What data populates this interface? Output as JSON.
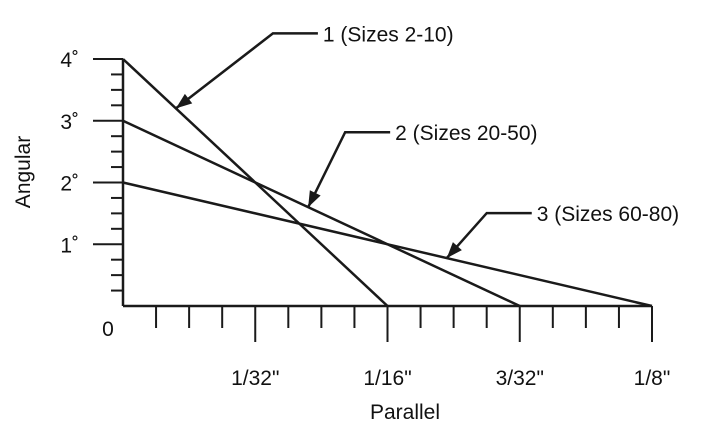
{
  "chart_data": {
    "type": "line",
    "title": "",
    "xlabel": "Parallel",
    "ylabel": "Angular",
    "xlim": [
      0,
      0.125
    ],
    "ylim": [
      0,
      4
    ],
    "origin_label": "0",
    "x_ticks": [
      {
        "value": 0.03125,
        "label": "1/32\""
      },
      {
        "value": 0.0625,
        "label": "1/16\""
      },
      {
        "value": 0.09375,
        "label": "3/32\""
      },
      {
        "value": 0.125,
        "label": "1/8\""
      }
    ],
    "y_ticks": [
      {
        "value": 1,
        "label": "1˚"
      },
      {
        "value": 2,
        "label": "2˚"
      },
      {
        "value": 3,
        "label": "3˚"
      },
      {
        "value": 4,
        "label": "4˚"
      }
    ],
    "x_minor_step": 0.0078125,
    "y_minor_step": 0.25,
    "grid": false,
    "legend": "none",
    "line_color": "#1a1a1a",
    "series": [
      {
        "name": "1 (Sizes 2-10)",
        "x": [
          0,
          0.0625
        ],
        "y": [
          4,
          0
        ],
        "callout_at": 0.0125
      },
      {
        "name": "2 (Sizes 20-50)",
        "x": [
          0,
          0.09375
        ],
        "y": [
          3,
          0
        ],
        "callout_at": 0.04375
      },
      {
        "name": "3 (Sizes 60-80)",
        "x": [
          0,
          0.125
        ],
        "y": [
          2,
          0
        ],
        "callout_at": 0.0765
      }
    ]
  }
}
